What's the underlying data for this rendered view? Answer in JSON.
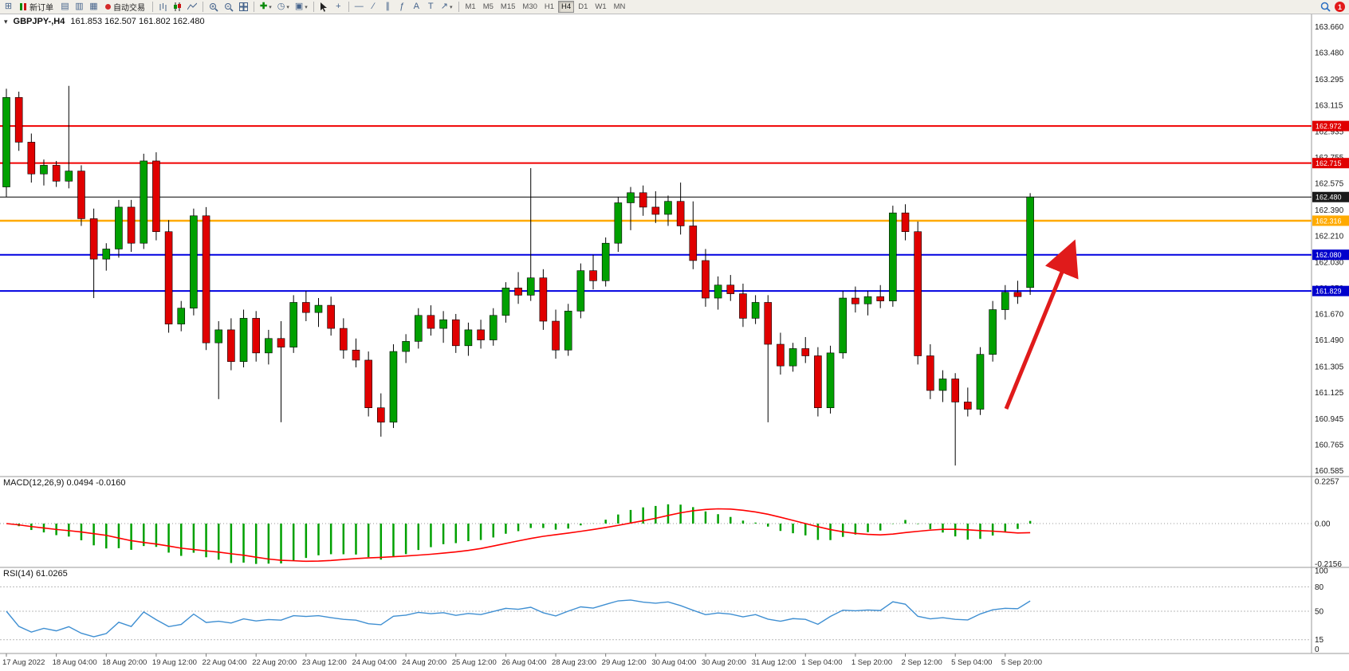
{
  "window": {
    "symbol_title": "GBPJPY-,H4",
    "ohlc": "161.853 162.507 161.802 162.480"
  },
  "toolbar": {
    "new_order_label": "新订单",
    "autotrading_label": "自动交易",
    "timeframes": [
      "M1",
      "M5",
      "M15",
      "M30",
      "H1",
      "H4",
      "D1",
      "W1",
      "MN"
    ],
    "active_timeframe": "H4",
    "notification_count": "1"
  },
  "chart_data": {
    "type": "candlestick",
    "symbol": "GBPJPY-",
    "timeframe": "H4",
    "ohlc_display": {
      "open": "161.853",
      "high": "162.507",
      "low": "161.802",
      "close": "162.480"
    },
    "up_color": "#00a000",
    "down_color": "#e00000",
    "price_axis": {
      "labels": [
        "163.660",
        "163.480",
        "163.295",
        "163.115",
        "162.935",
        "162.755",
        "162.575",
        "162.390",
        "162.210",
        "162.030",
        "161.850",
        "161.670",
        "161.490",
        "161.305",
        "161.125",
        "160.945",
        "160.765",
        "160.585"
      ]
    },
    "time_axis": {
      "candles_per_label": 4,
      "labels": [
        "17 Aug 2022",
        "18 Aug 04:00",
        "18 Aug 20:00",
        "19 Aug 12:00",
        "22 Aug 04:00",
        "22 Aug 20:00",
        "23 Aug 12:00",
        "24 Aug 04:00",
        "24 Aug 20:00",
        "25 Aug 12:00",
        "26 Aug 04:00",
        "28 Aug 23:00",
        "29 Aug 12:00",
        "30 Aug 04:00",
        "30 Aug 20:00",
        "31 Aug 12:00",
        "1 Sep 04:00",
        "1 Sep 20:00",
        "2 Sep 12:00",
        "5 Sep 04:00",
        "5 Sep 20:00"
      ]
    },
    "hlines": [
      {
        "price": 162.972,
        "color": "#f00000",
        "width": 2,
        "tag": "162.972",
        "tag_bg": "#e00000"
      },
      {
        "price": 162.715,
        "color": "#f00000",
        "width": 2,
        "tag": "162.715",
        "tag_bg": "#e00000"
      },
      {
        "price": 162.48,
        "color": "#000000",
        "width": 1,
        "tag": "162.480",
        "tag_bg": "#1a1a1a"
      },
      {
        "price": 162.316,
        "color": "#ffaa00",
        "width": 2.5,
        "tag": "162.316",
        "tag_bg": "#ffaa00"
      },
      {
        "price": 162.08,
        "color": "#0000e0",
        "width": 2,
        "tag": "162.080",
        "tag_bg": "#0000cc"
      },
      {
        "price": 161.829,
        "color": "#0000e0",
        "width": 2,
        "tag": "161.829",
        "tag_bg": "#0000cc"
      }
    ],
    "arrow": {
      "color": "#e01b1b"
    },
    "candles": [
      [
        162.55,
        163.23,
        162.48,
        163.17
      ],
      [
        163.17,
        163.21,
        162.8,
        162.86
      ],
      [
        162.86,
        162.92,
        162.58,
        162.64
      ],
      [
        162.64,
        162.74,
        162.56,
        162.7
      ],
      [
        162.7,
        162.73,
        162.55,
        162.59
      ],
      [
        162.59,
        163.25,
        162.54,
        162.66
      ],
      [
        162.66,
        162.7,
        162.28,
        162.33
      ],
      [
        162.33,
        162.4,
        161.78,
        162.05
      ],
      [
        162.05,
        162.16,
        161.97,
        162.12
      ],
      [
        162.12,
        162.46,
        162.06,
        162.41
      ],
      [
        162.41,
        162.46,
        162.1,
        162.16
      ],
      [
        162.16,
        162.78,
        162.12,
        162.73
      ],
      [
        162.73,
        162.79,
        162.18,
        162.24
      ],
      [
        162.24,
        162.32,
        161.54,
        161.6
      ],
      [
        161.6,
        161.76,
        161.55,
        161.71
      ],
      [
        161.71,
        162.4,
        161.66,
        162.35
      ],
      [
        162.35,
        162.41,
        161.42,
        161.47
      ],
      [
        161.47,
        161.62,
        161.08,
        161.56
      ],
      [
        161.56,
        161.64,
        161.28,
        161.34
      ],
      [
        161.34,
        161.7,
        161.3,
        161.64
      ],
      [
        161.64,
        161.69,
        161.34,
        161.4
      ],
      [
        161.4,
        161.56,
        161.32,
        161.5
      ],
      [
        161.5,
        161.62,
        160.92,
        161.44
      ],
      [
        161.44,
        161.8,
        161.4,
        161.75
      ],
      [
        161.75,
        161.83,
        161.62,
        161.68
      ],
      [
        161.68,
        161.78,
        161.58,
        161.73
      ],
      [
        161.73,
        161.79,
        161.52,
        161.57
      ],
      [
        161.57,
        161.64,
        161.36,
        161.42
      ],
      [
        161.42,
        161.5,
        161.3,
        161.35
      ],
      [
        161.35,
        161.41,
        160.96,
        161.02
      ],
      [
        161.02,
        161.12,
        160.82,
        160.92
      ],
      [
        160.92,
        161.46,
        160.88,
        161.41
      ],
      [
        161.41,
        161.53,
        161.33,
        161.48
      ],
      [
        161.48,
        161.71,
        161.43,
        161.66
      ],
      [
        161.66,
        161.73,
        161.52,
        161.57
      ],
      [
        161.57,
        161.69,
        161.47,
        161.63
      ],
      [
        161.63,
        161.67,
        161.4,
        161.45
      ],
      [
        161.45,
        161.61,
        161.38,
        161.56
      ],
      [
        161.56,
        161.63,
        161.43,
        161.49
      ],
      [
        161.49,
        161.71,
        161.45,
        161.66
      ],
      [
        161.66,
        161.89,
        161.61,
        161.85
      ],
      [
        161.85,
        161.96,
        161.74,
        161.8
      ],
      [
        161.8,
        162.68,
        161.76,
        161.92
      ],
      [
        161.92,
        161.98,
        161.56,
        161.62
      ],
      [
        161.62,
        161.7,
        161.36,
        161.42
      ],
      [
        161.42,
        161.74,
        161.38,
        161.69
      ],
      [
        161.69,
        162.02,
        161.64,
        161.97
      ],
      [
        161.97,
        162.08,
        161.84,
        161.9
      ],
      [
        161.9,
        162.2,
        161.86,
        162.16
      ],
      [
        162.16,
        162.48,
        162.1,
        162.44
      ],
      [
        162.44,
        162.55,
        162.25,
        162.51
      ],
      [
        162.51,
        162.56,
        162.35,
        162.41
      ],
      [
        162.41,
        162.52,
        162.3,
        162.36
      ],
      [
        162.36,
        162.49,
        162.28,
        162.45
      ],
      [
        162.45,
        162.58,
        162.22,
        162.28
      ],
      [
        162.28,
        162.45,
        161.98,
        162.04
      ],
      [
        162.04,
        162.12,
        161.72,
        161.78
      ],
      [
        161.78,
        161.93,
        161.7,
        161.87
      ],
      [
        161.87,
        161.94,
        161.76,
        161.81
      ],
      [
        161.81,
        161.88,
        161.58,
        161.64
      ],
      [
        161.64,
        161.8,
        161.6,
        161.75
      ],
      [
        161.75,
        161.8,
        160.92,
        161.46
      ],
      [
        161.46,
        161.54,
        161.25,
        161.31
      ],
      [
        161.31,
        161.47,
        161.27,
        161.43
      ],
      [
        161.43,
        161.51,
        161.33,
        161.38
      ],
      [
        161.38,
        161.44,
        160.96,
        161.02
      ],
      [
        161.02,
        161.45,
        160.98,
        161.4
      ],
      [
        161.4,
        161.83,
        161.36,
        161.78
      ],
      [
        161.78,
        161.86,
        161.68,
        161.74
      ],
      [
        161.74,
        161.83,
        161.66,
        161.79
      ],
      [
        161.79,
        161.87,
        161.71,
        161.76
      ],
      [
        161.76,
        162.42,
        161.72,
        162.37
      ],
      [
        162.37,
        162.43,
        162.18,
        162.24
      ],
      [
        162.24,
        162.31,
        161.32,
        161.38
      ],
      [
        161.38,
        161.46,
        161.08,
        161.14
      ],
      [
        161.14,
        161.28,
        161.06,
        161.22
      ],
      [
        161.22,
        161.26,
        160.62,
        161.06
      ],
      [
        161.06,
        161.16,
        160.96,
        161.01
      ],
      [
        161.01,
        161.44,
        160.97,
        161.39
      ],
      [
        161.39,
        161.76,
        161.34,
        161.7
      ],
      [
        161.7,
        161.87,
        161.63,
        161.82
      ],
      [
        161.82,
        161.9,
        161.74,
        161.79
      ],
      [
        161.853,
        162.507,
        161.802,
        162.48
      ]
    ]
  },
  "indicators": {
    "macd": {
      "label": "MACD(12,26,9) 0.0494 -0.0160",
      "axis": [
        "0.2257",
        "0.00",
        "-0.2156"
      ],
      "max": 0.2257,
      "min": -0.2156,
      "histogram_color": "#00a000",
      "signal_color": "#ff0000"
    },
    "rsi": {
      "label": "RSI(14) 61.0265",
      "axis": [
        "100",
        "80",
        "50",
        "15",
        "0"
      ],
      "levels": [
        80,
        50,
        15
      ],
      "line_color": "#3f8fd2"
    }
  }
}
